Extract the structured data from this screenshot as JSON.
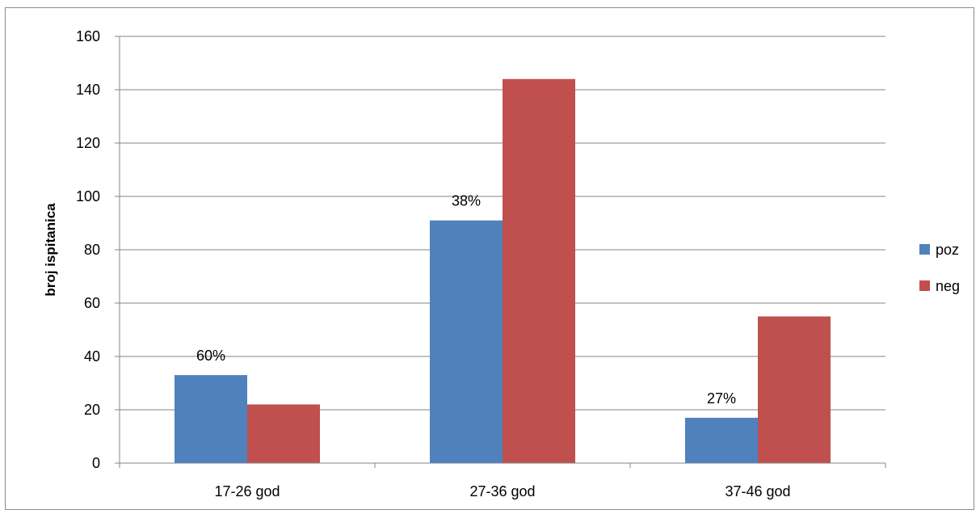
{
  "chart_data": {
    "type": "bar",
    "title": "",
    "xlabel": "",
    "ylabel": "broj ispitanica",
    "categories": [
      "17-26 god",
      "27-36 god",
      "37-46 god"
    ],
    "series": [
      {
        "name": "poz",
        "values": [
          33,
          91,
          17
        ],
        "labels": [
          "60%",
          "38%",
          "27%"
        ],
        "color": "#4f81bd"
      },
      {
        "name": "neg",
        "values": [
          22,
          144,
          55
        ],
        "color": "#c0504d"
      }
    ],
    "ylim": [
      0,
      160
    ],
    "yticks": [
      0,
      20,
      40,
      60,
      80,
      100,
      120,
      140,
      160
    ],
    "grid": true,
    "legend_position": "right"
  }
}
